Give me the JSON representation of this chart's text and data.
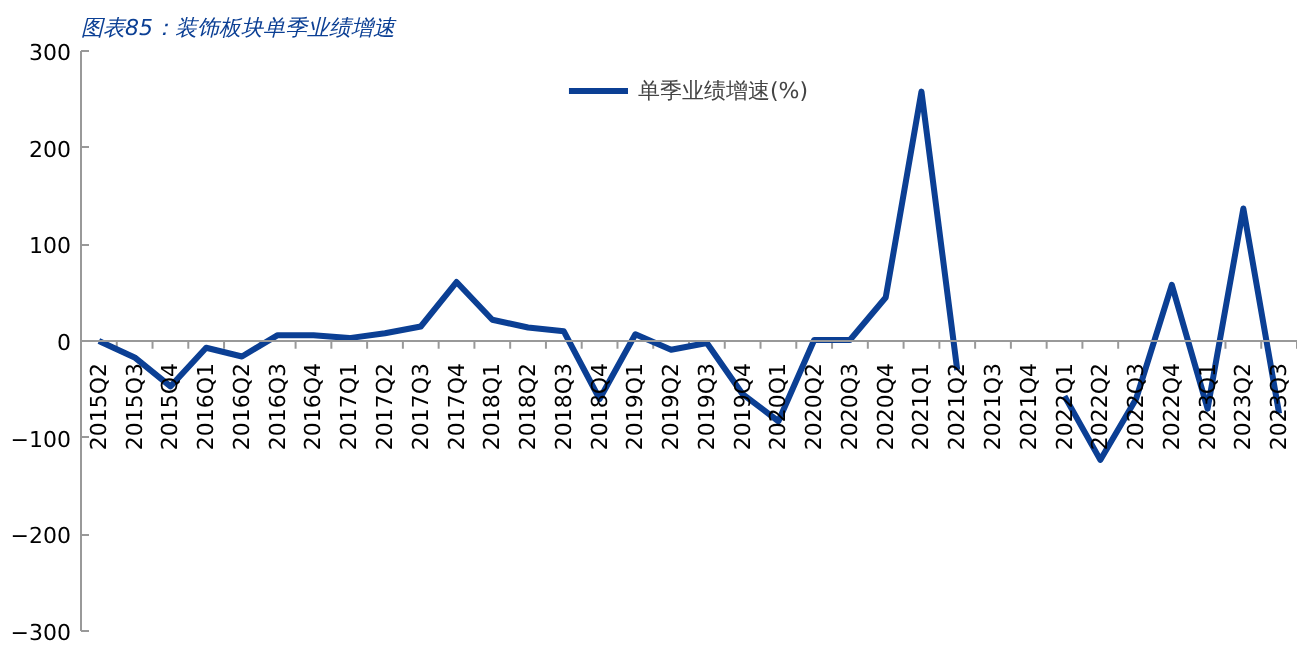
{
  "chart_data": {
    "type": "line",
    "title": "图表85：装饰板块单季业绩增速",
    "categories": [
      "2015Q2",
      "2015Q3",
      "2015Q4",
      "2016Q1",
      "2016Q2",
      "2016Q3",
      "2016Q4",
      "2017Q1",
      "2017Q2",
      "2017Q3",
      "2017Q4",
      "2018Q1",
      "2018Q2",
      "2018Q3",
      "2018Q4",
      "2019Q1",
      "2019Q2",
      "2019Q3",
      "2019Q4",
      "2020Q1",
      "2020Q2",
      "2020Q3",
      "2020Q4",
      "2021Q1",
      "2021Q2",
      "2021Q3",
      "2021Q4",
      "2022Q1",
      "2022Q2",
      "2022Q3",
      "2022Q4",
      "2023Q1",
      "2023Q2",
      "2023Q3"
    ],
    "series": [
      {
        "name": "单季业绩增速(%)",
        "color": "#0b3f94",
        "values": [
          0,
          -17,
          -47,
          -7,
          -16,
          6,
          6,
          3,
          8,
          15,
          61,
          22,
          14,
          10,
          -60,
          7,
          -9,
          -2,
          -55,
          -83,
          1,
          1,
          45,
          258,
          -30,
          null,
          null,
          -57,
          -123,
          -60,
          58,
          -70,
          137,
          -75
        ]
      }
    ],
    "ylim": [
      -300,
      300
    ],
    "yticks": [
      -300,
      -200,
      -100,
      0,
      100,
      200,
      300
    ],
    "grid": false,
    "legend": "top",
    "marker": "none",
    "line_style": "solid"
  }
}
